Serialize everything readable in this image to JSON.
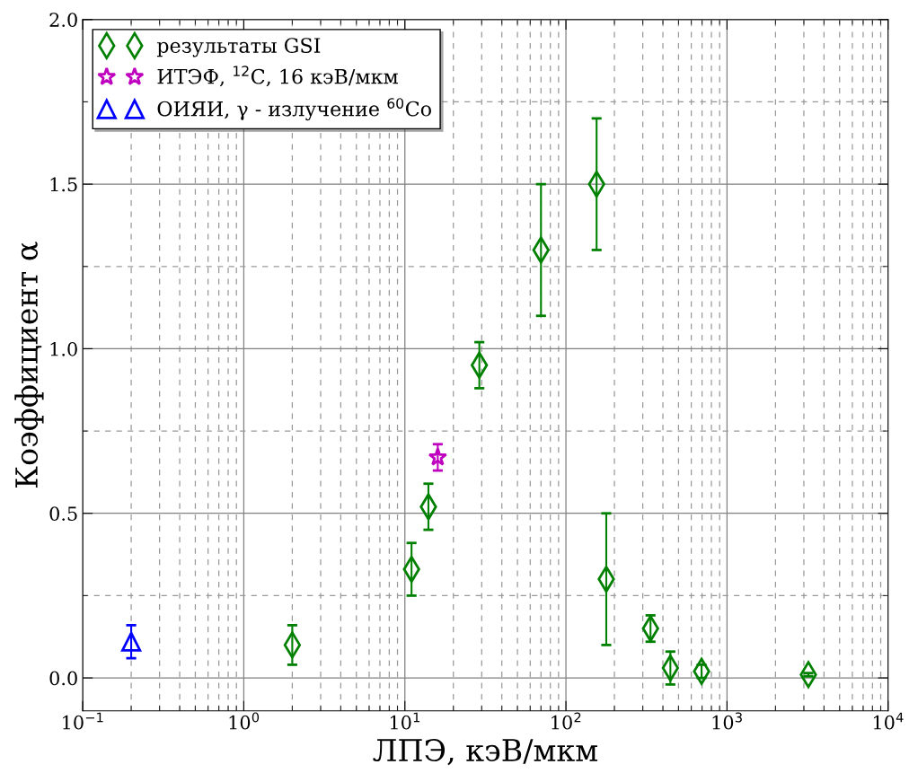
{
  "chart_data": {
    "type": "scatter",
    "xlabel": "ЛПЭ, кэВ/мкм",
    "ylabel": "Коэффициент α",
    "log": "x",
    "grid": true,
    "legend": "top left",
    "xlim": [
      0.1,
      10000
    ],
    "ylim": [
      -0.1,
      2.0
    ],
    "xticks": [
      {
        "value": 0.1,
        "label": "10$^{−1}$"
      },
      {
        "value": 1,
        "label": "10$^{0}$"
      },
      {
        "value": 10,
        "label": "10$^{1}$"
      },
      {
        "value": 100,
        "label": "10$^{2}$"
      },
      {
        "value": 1000,
        "label": "10$^{3}$"
      },
      {
        "value": 10000,
        "label": "10$^{4}$"
      }
    ],
    "yticks": [
      {
        "value": 0,
        "label": "0.0"
      },
      {
        "value": 0.5,
        "label": "0.5"
      },
      {
        "value": 1,
        "label": "1.0"
      },
      {
        "value": 1.5,
        "label": "1.5"
      },
      {
        "value": 2,
        "label": "2.0"
      }
    ],
    "series": [
      {
        "name": "результаты GSI",
        "color": "#008000",
        "marker": "diamond",
        "x": [
          2,
          11,
          14,
          29,
          70,
          155,
          178,
          335,
          445,
          695,
          3200
        ],
        "values": [
          0.1,
          0.33,
          0.52,
          0.95,
          1.3,
          1.5,
          0.3,
          0.15,
          0.03,
          0.02,
          0.01
        ],
        "errors": [
          [
            0.04,
            0.16
          ],
          [
            0.25,
            0.41
          ],
          [
            0.45,
            0.59
          ],
          [
            0.88,
            1.02
          ],
          [
            1.1,
            1.5
          ],
          [
            1.3,
            1.7
          ],
          [
            0.1,
            0.5
          ],
          [
            0.11,
            0.19
          ],
          [
            -0.02,
            0.08
          ],
          [
            0.0,
            0.04
          ],
          [
            0.005,
            0.015
          ]
        ]
      },
      {
        "name": "ИТЭФ, $^{12}$C, 16 кэВ/мкм",
        "color": "#bf00bf",
        "marker": "star",
        "x": [
          16
        ],
        "values": [
          0.67
        ],
        "errors": [
          [
            0.63,
            0.71
          ]
        ]
      },
      {
        "name": "ОИЯИ, γ - излучение $^{60}$Co",
        "color": "#0000ff",
        "marker": "triangle",
        "x": [
          0.2
        ],
        "values": [
          0.11
        ],
        "errors": [
          [
            0.06,
            0.16
          ]
        ]
      }
    ]
  }
}
